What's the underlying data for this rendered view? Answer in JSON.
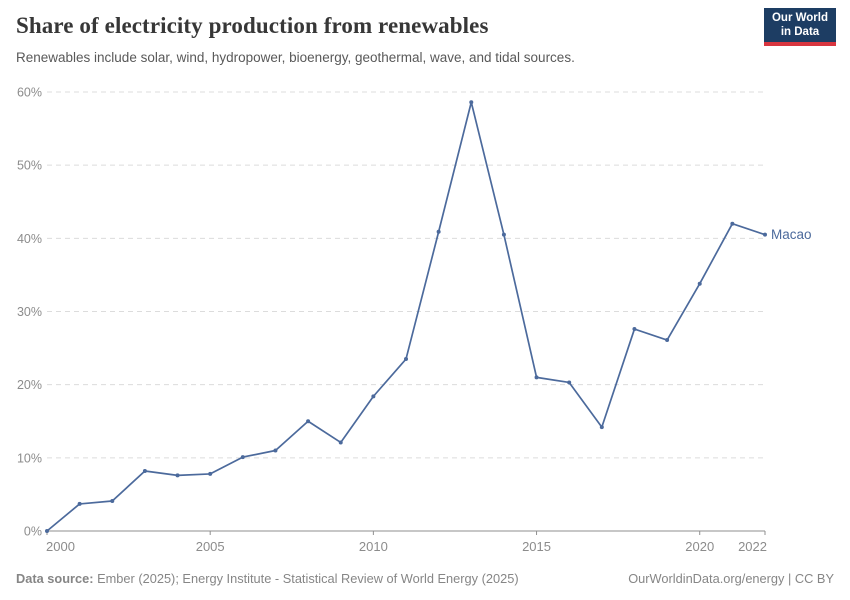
{
  "header": {
    "title": "Share of electricity production from renewables",
    "subtitle": "Renewables include solar, wind, hydropower, bioenergy, geothermal, wave, and tidal sources."
  },
  "logo": {
    "line1": "Our World",
    "line2": "in Data",
    "bg_color": "#1d3d63",
    "stripe_color": "#d8353f"
  },
  "chart_data": {
    "type": "line",
    "title": "Share of electricity production from renewables",
    "subtitle": "Renewables include solar, wind, hydropower, bioenergy, geothermal, wave, and tidal sources.",
    "xlabel": "",
    "ylabel": "",
    "xlim": [
      2000,
      2022
    ],
    "ylim": [
      0,
      60
    ],
    "yticks": [
      0,
      10,
      20,
      30,
      40,
      50,
      60
    ],
    "ytick_suffix": "%",
    "xticks": [
      2000,
      2005,
      2010,
      2015,
      2020,
      2022
    ],
    "grid": "horizontal-dashed",
    "legend_position": "end-of-line-label",
    "series": [
      {
        "name": "Macao",
        "color": "#4C6A9C",
        "x": [
          2000,
          2001,
          2002,
          2003,
          2004,
          2005,
          2006,
          2007,
          2008,
          2009,
          2010,
          2011,
          2012,
          2013,
          2014,
          2015,
          2016,
          2017,
          2018,
          2019,
          2020,
          2021,
          2022
        ],
        "values": [
          0.0,
          3.7,
          4.1,
          8.2,
          7.6,
          7.8,
          10.1,
          11.0,
          15.0,
          12.1,
          18.4,
          23.5,
          40.9,
          58.6,
          40.5,
          21.0,
          20.3,
          14.2,
          27.6,
          26.1,
          33.8,
          42.0,
          40.5
        ]
      }
    ],
    "colors": {
      "grid": "#dcdcdc",
      "axis": "#8f8f8f",
      "tick_text": "#8c8c8c"
    }
  },
  "footer": {
    "source_label": "Data source:",
    "source_text": " Ember (2025); Energy Institute - Statistical Review of World Energy (2025)",
    "license": "OurWorldinData.org/energy | CC BY"
  }
}
